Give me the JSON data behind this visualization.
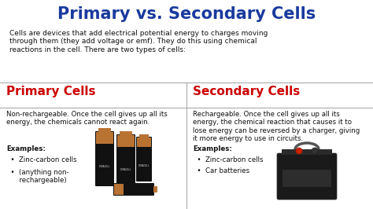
{
  "title": "Primary vs. Secondary Cells",
  "title_color": "#1a3a9e",
  "title_fontsize": 15,
  "intro_text": "Cells are devices that add electrical potential energy to charges moving\nthrough them (they add voltage or emf). They do this using chemical\nreactions in the cell. There are two types of cells:",
  "bg_color": "#ffffff",
  "left_header": "Primary Cells",
  "right_header": "Secondary Cells",
  "header_color": "#cc0000",
  "header_fontsize": 11,
  "left_body": "Non-rechargeable. Once the cell gives up all its\nenergy, the chemicals cannot react again.",
  "right_body": "Rechargeable. Once the cell gives up all its\nenergy, the chemical reaction that causes it to\nlose energy can be reversed by a charger, giving\nit more energy to use in circuits.",
  "left_examples_label": "Examples:",
  "right_examples_label": "Examples:",
  "left_examples": [
    "  •  Zinc-carbon cells",
    "  •  (anything non-\n      rechargeable)"
  ],
  "right_examples": [
    "  •  Zinc-carbon cells",
    "  •  Car batteries"
  ],
  "body_fontsize": 6.2,
  "examples_fontsize": 6.2,
  "intro_fontsize": 6.5,
  "divider_color": "#aaaaaa",
  "text_color": "#111111"
}
